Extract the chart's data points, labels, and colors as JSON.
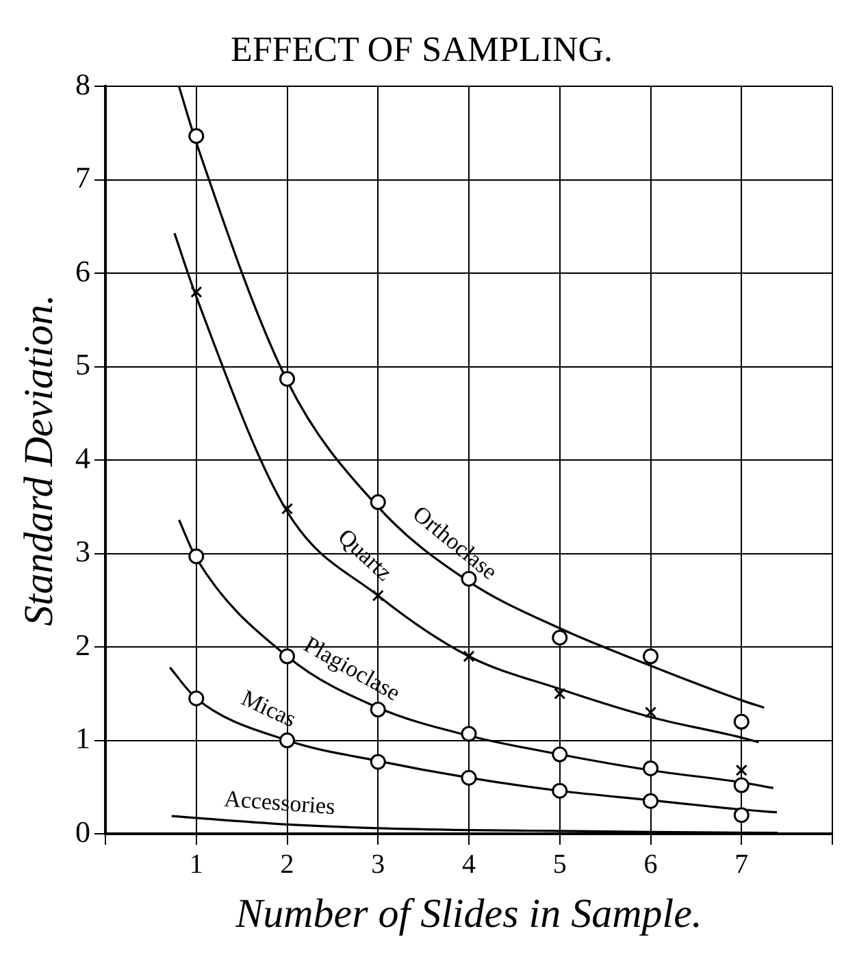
{
  "chart_data": {
    "type": "scatter",
    "title": "EFFECT OF SAMPLING.",
    "xlabel": "Number of Slides in Sample.",
    "ylabel": "Standard Deviation.",
    "xlim": [
      0,
      8
    ],
    "ylim": [
      0,
      8
    ],
    "xticks": [
      {
        "value": 0,
        "label": null
      },
      1,
      2,
      3,
      4,
      5,
      6,
      7,
      {
        "value": 8,
        "label": null
      }
    ],
    "yticks": [
      0,
      1,
      2,
      3,
      4,
      5,
      6,
      7,
      8
    ],
    "grid": true,
    "legend": false,
    "series": [
      {
        "color": "#000000",
        "marker": "circle",
        "x": [
          1,
          2,
          3,
          4,
          5,
          6,
          7
        ],
        "values": [
          7.47,
          4.87,
          3.55,
          2.73,
          2.1,
          1.9,
          1.2
        ]
      },
      {
        "color": "#000000",
        "marker": "cross",
        "x": [
          1,
          2,
          3,
          4,
          5,
          6,
          7
        ],
        "values": [
          5.8,
          3.48,
          2.55,
          1.9,
          1.5,
          1.3,
          0.68
        ]
      },
      {
        "color": "#000000",
        "marker": "circle",
        "x": [
          1,
          2,
          3,
          4,
          5,
          6,
          7
        ],
        "values": [
          2.97,
          1.9,
          1.33,
          1.07,
          0.85,
          0.7,
          0.52
        ]
      },
      {
        "color": "#000000",
        "marker": "circle",
        "x": [
          1,
          2,
          3,
          4,
          5,
          6,
          7
        ],
        "values": [
          1.45,
          1.0,
          0.77,
          0.6,
          0.46,
          0.35,
          0.2
        ]
      },
      {
        "type": "line",
        "name": "Orthoclase",
        "color": "#000000",
        "marker": "none",
        "x": [
          0.81,
          1,
          2,
          3,
          4,
          5,
          6,
          7,
          7.25
        ],
        "values": [
          8,
          7.4,
          4.85,
          3.5,
          2.7,
          2.2,
          1.8,
          1.43,
          1.35
        ]
      },
      {
        "type": "line",
        "name": "Quartz",
        "color": "#000000",
        "marker": "none",
        "x": [
          0.76,
          1,
          2,
          3,
          4,
          5,
          6,
          7,
          7.19
        ],
        "values": [
          6.43,
          5.75,
          3.45,
          2.55,
          1.9,
          1.55,
          1.25,
          1.03,
          0.98
        ]
      },
      {
        "type": "line",
        "name": "Plagioclase",
        "color": "#000000",
        "marker": "none",
        "x": [
          0.81,
          1,
          2,
          3,
          4,
          5,
          6,
          7,
          7.35
        ],
        "values": [
          3.36,
          2.95,
          1.9,
          1.35,
          1.05,
          0.85,
          0.68,
          0.55,
          0.49
        ]
      },
      {
        "type": "line",
        "name": "Micas",
        "color": "#000000",
        "marker": "none",
        "x": [
          0.71,
          1,
          2,
          3,
          4,
          5,
          6,
          7,
          7.39
        ],
        "values": [
          1.78,
          1.45,
          1.0,
          0.78,
          0.6,
          0.46,
          0.36,
          0.26,
          0.23
        ]
      },
      {
        "type": "line",
        "name": "Accessories",
        "color": "#000000",
        "marker": "none",
        "x": [
          0.73,
          2,
          3,
          4,
          5,
          6,
          7.4
        ],
        "values": [
          0.19,
          0.1,
          0.06,
          0.04,
          0.03,
          0.02,
          0.01
        ]
      }
    ]
  }
}
